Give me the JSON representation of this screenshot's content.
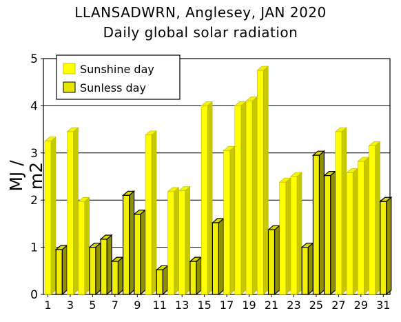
{
  "chart_data": {
    "type": "bar",
    "title": "LLANSADWRN, Anglesey, JAN 2020",
    "subtitle": "Daily global solar radiation",
    "xlabel": "",
    "ylabel": "MJ / m2",
    "ylim": [
      0,
      5
    ],
    "yticks": [
      "0",
      "1",
      "2",
      "3",
      "4",
      "5"
    ],
    "xticks": [
      "1",
      "3",
      "5",
      "7",
      "9",
      "11",
      "13",
      "15",
      "17",
      "19",
      "21",
      "23",
      "25",
      "27",
      "29",
      "31"
    ],
    "grid": "horizontal",
    "legend_position": "top-left",
    "categories": [
      1,
      2,
      3,
      4,
      5,
      6,
      7,
      8,
      9,
      10,
      11,
      12,
      13,
      14,
      15,
      16,
      17,
      18,
      19,
      20,
      21,
      22,
      23,
      24,
      25,
      26,
      27,
      28,
      29,
      30,
      31
    ],
    "values": [
      3.25,
      0.95,
      3.45,
      1.97,
      1.0,
      1.17,
      0.7,
      2.1,
      1.7,
      3.38,
      0.52,
      2.18,
      2.2,
      0.7,
      4.0,
      1.52,
      3.05,
      4.0,
      4.1,
      4.75,
      1.37,
      2.38,
      2.5,
      1.0,
      2.95,
      2.52,
      3.45,
      2.58,
      2.82,
      3.15,
      1.97
    ],
    "day_type": [
      "sunshine",
      "sunless",
      "sunshine",
      "sunshine",
      "sunless",
      "sunless",
      "sunless",
      "sunless",
      "sunless",
      "sunshine",
      "sunless",
      "sunshine",
      "sunshine",
      "sunless",
      "sunshine",
      "sunless",
      "sunshine",
      "sunshine",
      "sunshine",
      "sunshine",
      "sunless",
      "sunshine",
      "sunshine",
      "sunless",
      "sunless",
      "sunless",
      "sunshine",
      "sunshine",
      "sunshine",
      "sunshine",
      "sunless"
    ],
    "legend": [
      {
        "key": "sunshine",
        "label": "Sunshine day",
        "color": "#ffff00"
      },
      {
        "key": "sunless",
        "label": "Sunless day",
        "color": "#e6e600"
      }
    ],
    "colors": {
      "sunshine_front": "#ffff00",
      "sunshine_top": "#f4f400",
      "sunshine_side": "#c8c800",
      "sunless_front": "#f0f000",
      "sunless_top": "#d8d800",
      "sunless_side": "#909000",
      "outline": "#000000"
    }
  }
}
